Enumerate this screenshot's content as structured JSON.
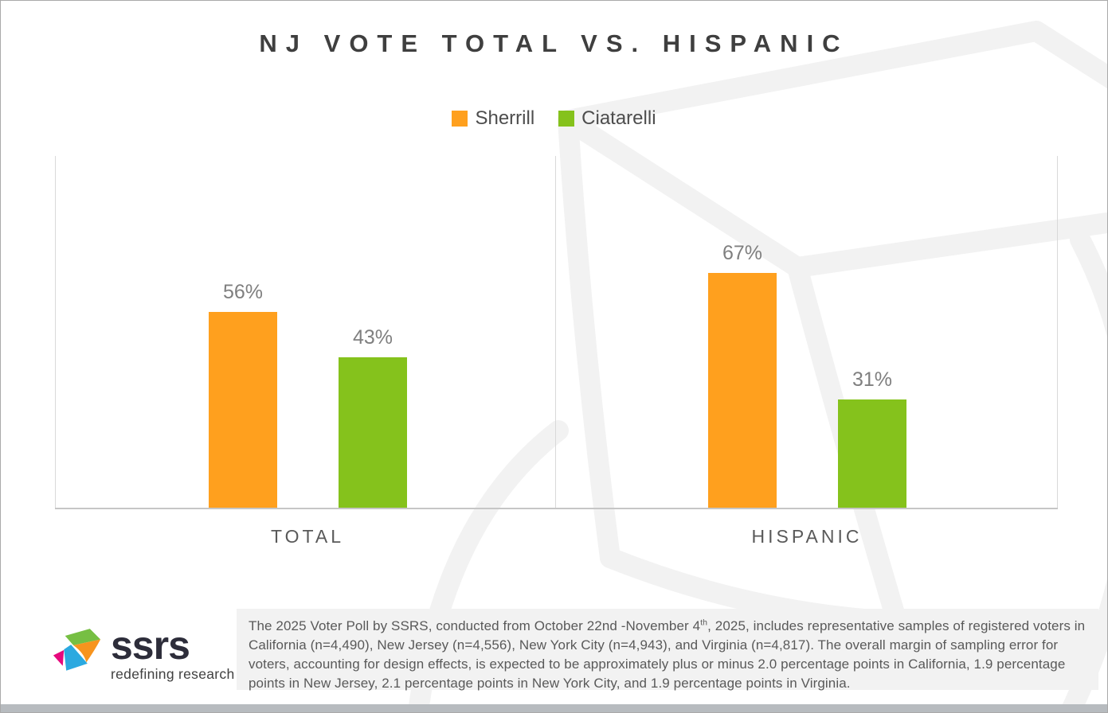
{
  "slide": {
    "title": "NJ VOTE TOTAL VS. HISPANIC"
  },
  "chart_data": {
    "type": "bar",
    "title": "NJ VOTE TOTAL VS. HISPANIC",
    "categories": [
      "TOTAL",
      "HISPANIC"
    ],
    "series": [
      {
        "name": "Sherrill",
        "color": "#FFA01E",
        "values": [
          56,
          67
        ],
        "labels": [
          "56%",
          "67%"
        ]
      },
      {
        "name": "Ciatarelli",
        "color": "#85C21C",
        "values": [
          43,
          31
        ],
        "labels": [
          "43%",
          "31%"
        ]
      }
    ],
    "xlabel": "",
    "ylabel": "",
    "ylim": [
      0,
      100
    ],
    "grid": false,
    "legend_position": "top",
    "value_label_format": "percent"
  },
  "footer": {
    "logo_text": "ssrs",
    "logo_tagline": "redefining research",
    "note_part1": "The 2025 Voter Poll by SSRS, conducted from October 22nd -November 4",
    "note_sup": "th",
    "note_part2": ", 2025, includes representative samples of registered voters in California (n=4,490), New Jersey (n=4,556), New York City (n=4,943), and Virginia (n=4,817). The overall margin of sampling error for voters, accounting for design effects, is expected to be approximately plus or minus 2.0 percentage points in California, 1.9 percentage points in New Jersey, 2.1 percentage points in New York City, and 1.9 percentage points in Virginia."
  },
  "colors": {
    "accent_orange": "#FFA01E",
    "accent_green": "#85C21C",
    "title_text": "#3f3f3f",
    "value_label_gray": "#7f7f7f",
    "axis_line": "#d9d9d9",
    "note_background": "#f2f2f2",
    "bottom_bar": "#b7bbbf"
  }
}
